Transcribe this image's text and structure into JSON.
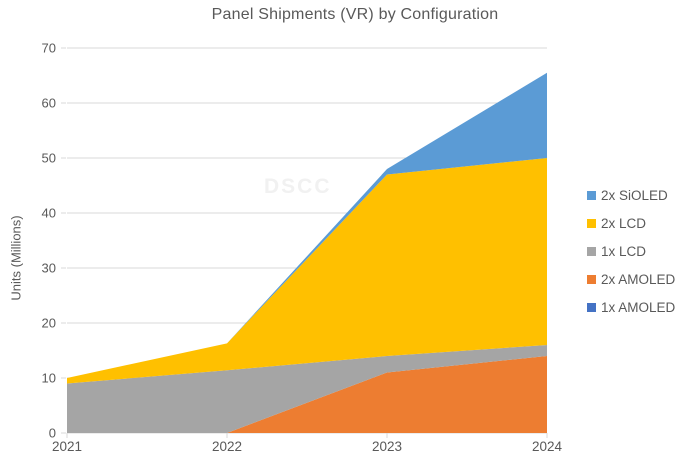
{
  "chart_data": {
    "type": "area",
    "stacked": true,
    "title": "Panel Shipments (VR) by Configuration",
    "xlabel": "",
    "ylabel": "Units (Millions)",
    "watermark": "DSCC",
    "categories": [
      "2021",
      "2022",
      "2023",
      "2024"
    ],
    "y_ticks": [
      0,
      10,
      20,
      30,
      40,
      50,
      60,
      70
    ],
    "ylim": [
      0,
      70
    ],
    "grid": "horizontal",
    "legend_position": "right",
    "text_color": "#595959",
    "grid_color": "#d9d9d9",
    "series": [
      {
        "name": "1x AMOLED",
        "color": "#4472C4",
        "values": [
          0,
          0,
          0,
          0
        ]
      },
      {
        "name": "2x AMOLED",
        "color": "#ED7D31",
        "values": [
          0,
          0,
          11,
          14
        ]
      },
      {
        "name": "1x LCD",
        "color": "#A5A5A5",
        "values": [
          9,
          11.4,
          3,
          2
        ]
      },
      {
        "name": "2x LCD",
        "color": "#FFC000",
        "values": [
          1,
          4.9,
          33,
          34
        ]
      },
      {
        "name": "2x SiOLED",
        "color": "#5B9BD5",
        "values": [
          0,
          0,
          1,
          15.5
        ]
      }
    ],
    "legend": [
      {
        "label": "2x SiOLED",
        "color": "#5B9BD5"
      },
      {
        "label": "2x LCD",
        "color": "#FFC000"
      },
      {
        "label": "1x LCD",
        "color": "#A5A5A5"
      },
      {
        "label": "2x AMOLED",
        "color": "#ED7D31"
      },
      {
        "label": "1x AMOLED",
        "color": "#4472C4"
      }
    ]
  }
}
